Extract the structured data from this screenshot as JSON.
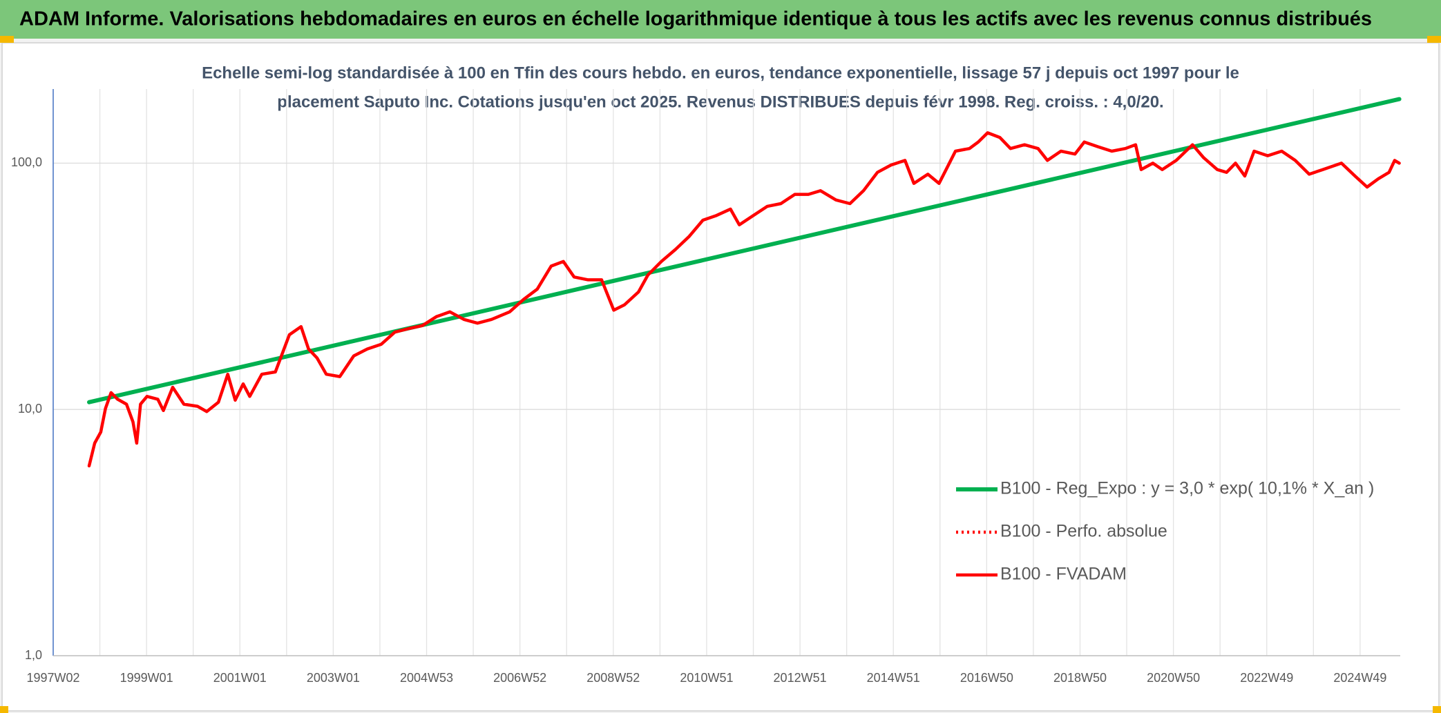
{
  "chart_data": {
    "type": "line",
    "title": "ADAM Informe. Valorisations hebdomadaires en euros en échelle logarithmique identique à tous les actifs avec les revenus connus distribués",
    "subtitle": [
      "Echelle semi-log standardisée à 100 en Tfin des cours hebdo. en euros, tendance exponentielle, lissage 57 j depuis oct 1997 pour le",
      "placement Saputo Inc. Cotations jusqu'en oct 2025. Revenus DISTRIBUES depuis févr 1998. Reg. croiss. : 4,0/20."
    ],
    "log_scale": true,
    "grid": true,
    "legend": "lower right",
    "xlim": [
      1997.0,
      2025.86
    ],
    "ylim": [
      1,
      200
    ],
    "yticks": [
      {
        "value": 1,
        "label": "1,0"
      },
      {
        "value": 10,
        "label": "10,0"
      },
      {
        "value": 100,
        "label": "100,0"
      }
    ],
    "xticks": [
      {
        "value": 1997.0,
        "label": "1997W02"
      },
      {
        "value": 1999.0,
        "label": "1999W01"
      },
      {
        "value": 2001.0,
        "label": "2001W01"
      },
      {
        "value": 2003.0,
        "label": "2003W01"
      },
      {
        "value": 2005.0,
        "label": "2004W53"
      },
      {
        "value": 2007.0,
        "label": "2006W52"
      },
      {
        "value": 2009.0,
        "label": "2008W52"
      },
      {
        "value": 2011.0,
        "label": "2010W51"
      },
      {
        "value": 2013.0,
        "label": "2012W51"
      },
      {
        "value": 2015.0,
        "label": "2014W51"
      },
      {
        "value": 2017.0,
        "label": "2016W50"
      },
      {
        "value": 2019.0,
        "label": "2018W50"
      },
      {
        "value": 2021.0,
        "label": "2020W50"
      },
      {
        "value": 2023.0,
        "label": "2022W49"
      },
      {
        "value": 2025.0,
        "label": "2024W49"
      }
    ],
    "xminorticks": [
      1998.0,
      2000.0,
      2002.0,
      2004.0,
      2006.0,
      2008.0,
      2010.0,
      2012.0,
      2014.0,
      2016.0,
      2018.0,
      2020.0,
      2022.0,
      2024.0
    ],
    "series": [
      {
        "name": "B100 - Reg_Expo : y = 3,0 * exp( 10,1% *  X_an )",
        "color": "#00b050",
        "style": "solid",
        "x": [
          1997.77,
          2025.84
        ],
        "values": [
          10.7,
          182
        ]
      },
      {
        "name": "B100 - Perfo. absolue",
        "color": "#ff0000",
        "style": "dotted"
      },
      {
        "name": "B100 - FVADAM",
        "color": "#ff0000",
        "style": "solid",
        "x": [
          1997.77,
          1997.89,
          1998.02,
          1998.12,
          1998.24,
          1998.38,
          1998.57,
          1998.71,
          1998.79,
          1998.87,
          1999.01,
          1999.24,
          1999.36,
          1999.56,
          1999.8,
          2000.09,
          2000.29,
          2000.54,
          2000.74,
          2000.9,
          2001.07,
          2001.21,
          2001.47,
          2001.76,
          2002.06,
          2002.31,
          2002.47,
          2002.65,
          2002.85,
          2003.14,
          2003.44,
          2003.73,
          2004.03,
          2004.32,
          2004.62,
          2004.91,
          2005.21,
          2005.5,
          2005.8,
          2006.09,
          2006.39,
          2006.78,
          2007.08,
          2007.37,
          2007.67,
          2007.93,
          2008.16,
          2008.46,
          2008.75,
          2009.01,
          2009.24,
          2009.54,
          2009.74,
          2010.03,
          2010.33,
          2010.62,
          2010.92,
          2011.21,
          2011.51,
          2011.7,
          2012.0,
          2012.3,
          2012.59,
          2012.89,
          2013.18,
          2013.44,
          2013.77,
          2014.07,
          2014.36,
          2014.66,
          2014.95,
          2015.25,
          2015.44,
          2015.74,
          2015.98,
          2016.13,
          2016.33,
          2016.63,
          2016.82,
          2017.02,
          2017.28,
          2017.51,
          2017.81,
          2018.1,
          2018.3,
          2018.59,
          2018.89,
          2019.09,
          2019.38,
          2019.68,
          2019.97,
          2020.19,
          2020.31,
          2020.56,
          2020.76,
          2021.06,
          2021.41,
          2021.65,
          2021.94,
          2022.14,
          2022.33,
          2022.53,
          2022.73,
          2023.02,
          2023.32,
          2023.61,
          2023.91,
          2024.2,
          2024.6,
          2024.89,
          2025.15,
          2025.39,
          2025.62,
          2025.74,
          2025.84
        ],
        "values": [
          5.9,
          7.3,
          8.1,
          10.1,
          11.7,
          11.0,
          10.5,
          8.9,
          7.3,
          10.5,
          11.3,
          11.0,
          9.9,
          12.3,
          10.5,
          10.3,
          9.8,
          10.7,
          13.9,
          10.9,
          12.7,
          11.3,
          13.9,
          14.2,
          20.1,
          21.7,
          17.6,
          16.2,
          13.9,
          13.6,
          16.5,
          17.6,
          18.4,
          20.6,
          21.3,
          21.9,
          23.8,
          24.9,
          23.2,
          22.4,
          23.2,
          24.9,
          28.0,
          30.8,
          38.2,
          39.9,
          34.5,
          33.6,
          33.6,
          25.3,
          26.6,
          30.0,
          35.1,
          39.9,
          44.6,
          50.3,
          58.7,
          61.3,
          65.1,
          56.2,
          61.3,
          66.8,
          68.5,
          74.7,
          74.7,
          77.3,
          70.9,
          68.5,
          77.3,
          91.8,
          98.3,
          102.6,
          82.8,
          90.2,
          82.8,
          94.2,
          111.9,
          114.7,
          121.9,
          132.8,
          127.2,
          114.7,
          118.8,
          114.7,
          102.6,
          111.9,
          108.9,
          121.9,
          116.7,
          111.9,
          114.7,
          118.8,
          94.2,
          100,
          94.2,
          102.6,
          118.8,
          105.2,
          94.2,
          91.8,
          100,
          88.7,
          111.9,
          107.2,
          111.9,
          102.6,
          90.2,
          94.2,
          100,
          88.7,
          80.0,
          86.4,
          91.8,
          102.6,
          100
        ]
      }
    ]
  }
}
